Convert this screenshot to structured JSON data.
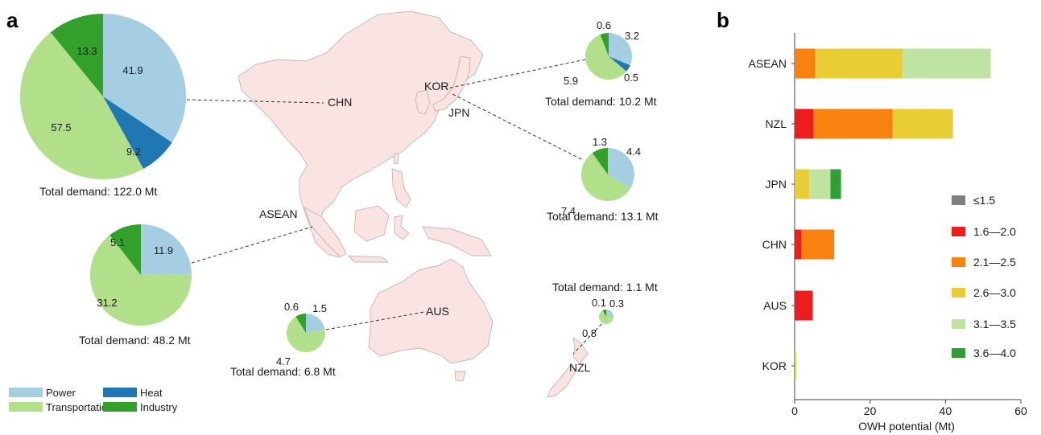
{
  "panel_a": {
    "label": "a",
    "pie_labels": [
      "CHN",
      "KOR",
      "JPN",
      "ASEAN",
      "AUS",
      "NZL"
    ],
    "legend": [
      {
        "name": "Power",
        "color": "#a6cee3"
      },
      {
        "name": "Heat",
        "color": "#1f78b4"
      },
      {
        "name": "Transportation",
        "color": "#b2df8a"
      },
      {
        "name": "Industry",
        "color": "#33a02c"
      }
    ]
  },
  "panel_b": {
    "label": "b",
    "xlabel": "OWH potential (Mt)",
    "xticks": [
      "0",
      "20",
      "40",
      "60"
    ],
    "legend": [
      {
        "name": "≤1.5",
        "color": "#7f7f7f"
      },
      {
        "name": "1.6—2.0",
        "color": "#ee1c1c"
      },
      {
        "name": "2.1—2.5",
        "color": "#f7820f"
      },
      {
        "name": "2.6—3.0",
        "color": "#e8cd34"
      },
      {
        "name": "3.1—3.5",
        "color": "#bfe3a0"
      },
      {
        "name": "3.6—4.0",
        "color": "#2f9e33"
      }
    ]
  },
  "chart_data": [
    {
      "type": "pie",
      "region": "CHN",
      "total_label": "Total demand: 122.0 Mt",
      "slices": [
        {
          "category": "Power",
          "value": 41.9,
          "label": "41.9"
        },
        {
          "category": "Heat",
          "value": 9.2,
          "label": "9.2"
        },
        {
          "category": "Transportation",
          "value": 57.5,
          "label": "57.5"
        },
        {
          "category": "Industry",
          "value": 13.3,
          "label": "13.3"
        }
      ]
    },
    {
      "type": "pie",
      "region": "ASEAN",
      "total_label": "Total demand: 48.2 Mt",
      "slices": [
        {
          "category": "Power",
          "value": 11.9,
          "label": "11.9"
        },
        {
          "category": "Heat",
          "value": 0,
          "label": ""
        },
        {
          "category": "Transportation",
          "value": 31.2,
          "label": "31.2"
        },
        {
          "category": "Industry",
          "value": 5.1,
          "label": "5.1"
        }
      ]
    },
    {
      "type": "pie",
      "region": "KOR",
      "total_label": "Total demand: 10.2 Mt",
      "slices": [
        {
          "category": "Power",
          "value": 3.2,
          "label": "3.2"
        },
        {
          "category": "Heat",
          "value": 0.5,
          "label": "0.5"
        },
        {
          "category": "Transportation",
          "value": 5.9,
          "label": "5.9"
        },
        {
          "category": "Industry",
          "value": 0.6,
          "label": "0.6"
        }
      ]
    },
    {
      "type": "pie",
      "region": "JPN",
      "total_label": "Total demand: 13.1 Mt",
      "slices": [
        {
          "category": "Power",
          "value": 4.4,
          "label": "4.4"
        },
        {
          "category": "Heat",
          "value": 0,
          "label": ""
        },
        {
          "category": "Transportation",
          "value": 7.4,
          "label": "7.4"
        },
        {
          "category": "Industry",
          "value": 1.3,
          "label": "1.3"
        }
      ]
    },
    {
      "type": "pie",
      "region": "AUS",
      "total_label": "Total demand: 6.8 Mt",
      "slices": [
        {
          "category": "Power",
          "value": 1.5,
          "label": "1.5"
        },
        {
          "category": "Heat",
          "value": 0,
          "label": ""
        },
        {
          "category": "Transportation",
          "value": 4.7,
          "label": "4.7"
        },
        {
          "category": "Industry",
          "value": 0.6,
          "label": "0.6"
        }
      ]
    },
    {
      "type": "pie",
      "region": "NZL",
      "total_label": "Total demand: 1.1 Mt",
      "slices": [
        {
          "category": "Power",
          "value": 0.3,
          "label": "0.3"
        },
        {
          "category": "Heat",
          "value": 0,
          "label": ""
        },
        {
          "category": "Transportation",
          "value": 0.8,
          "label": "0.8"
        },
        {
          "category": "Industry",
          "value": 0.1,
          "label": "0.1"
        }
      ]
    },
    {
      "type": "bar",
      "orientation": "horizontal",
      "stacked": true,
      "xlabel": "OWH potential (Mt)",
      "xlim": [
        0,
        60
      ],
      "categories": [
        "ASEAN",
        "NZL",
        "JPN",
        "CHN",
        "AUS",
        "KOR"
      ],
      "series": [
        {
          "name": "≤1.5",
          "values": [
            0,
            0,
            0,
            0,
            0,
            0
          ]
        },
        {
          "name": "1.6—2.0",
          "values": [
            0,
            5.0,
            0,
            1.8,
            4.8,
            0
          ]
        },
        {
          "name": "2.1—2.5",
          "values": [
            5.5,
            21.0,
            0,
            8.7,
            0,
            0
          ]
        },
        {
          "name": "2.6—3.0",
          "values": [
            23.0,
            16.0,
            3.9,
            0,
            0,
            0.4
          ]
        },
        {
          "name": "3.1—3.5",
          "values": [
            23.5,
            0,
            5.6,
            0,
            0,
            0
          ]
        },
        {
          "name": "3.6—4.0",
          "values": [
            0,
            0,
            2.8,
            0,
            0,
            0
          ]
        }
      ]
    }
  ]
}
